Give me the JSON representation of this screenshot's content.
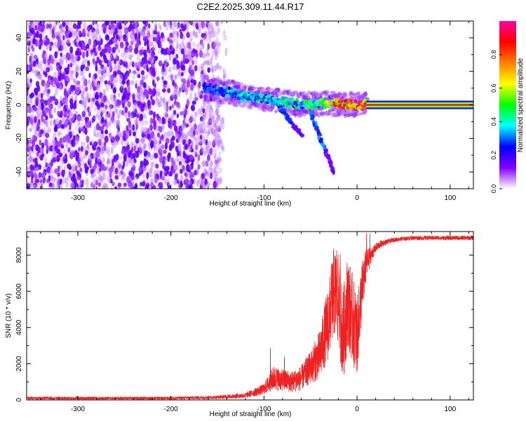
{
  "title": "C2E2.2025.309.11.44.R17",
  "chart_data": [
    {
      "type": "heatmap",
      "title": "C2E2.2025.309.11.44.R17",
      "xlabel": "Height of straight line (km)",
      "ylabel": "Frequency (Hz)",
      "xlim": [
        -355,
        125
      ],
      "ylim": [
        -50,
        50
      ],
      "xticks": [
        -300,
        -200,
        -100,
        0,
        100
      ],
      "yticks": [
        -40,
        -20,
        0,
        20,
        40
      ],
      "colorbar": {
        "label": "Normalized spectral amplitude",
        "range": [
          0,
          1
        ],
        "ticks": [
          0.0,
          0.2,
          0.4,
          0.6,
          0.8
        ],
        "tick_labels": [
          "0.0",
          "0.2",
          "0.4",
          "0.6",
          "0.8"
        ],
        "colormap": [
          "#ffffff",
          "#8000ff",
          "#0000ff",
          "#00ffff",
          "#00ff00",
          "#ffff00",
          "#ff8000",
          "#ff0000",
          "#ff00a0"
        ]
      },
      "noise_region": {
        "x_range": [
          -355,
          -150
        ],
        "freq_range": [
          -50,
          50
        ],
        "typical_amplitude": 0.15
      },
      "signal_track": [
        {
          "x": -165,
          "freq": 10,
          "amplitude": 0.25
        },
        {
          "x": -140,
          "freq": 8,
          "amplitude": 0.3
        },
        {
          "x": -120,
          "freq": 5,
          "amplitude": 0.35
        },
        {
          "x": -100,
          "freq": 4,
          "amplitude": 0.35
        },
        {
          "x": -80,
          "freq": 2,
          "amplitude": 0.4
        },
        {
          "x": -60,
          "freq": 0,
          "amplitude": 0.4
        },
        {
          "x": -40,
          "freq": 1,
          "amplitude": 0.45
        },
        {
          "x": -20,
          "freq": 0.5,
          "amplitude": 0.75
        },
        {
          "x": 0,
          "freq": 0,
          "amplitude": 0.8
        },
        {
          "x": 10,
          "freq": 0,
          "amplitude": 0.9
        },
        {
          "x": 125,
          "freq": 0,
          "amplitude": 0.9
        }
      ],
      "side_branches": [
        {
          "x": [
            -85,
            -60
          ],
          "freq": [
            0,
            -18
          ]
        },
        {
          "x": [
            -50,
            -25
          ],
          "freq": [
            -5,
            -40
          ]
        }
      ]
    },
    {
      "type": "line",
      "xlabel": "Height of straight line (km)",
      "ylabel": "SNR (10 * v/v)",
      "xlim": [
        -355,
        125
      ],
      "ylim": [
        0,
        9300
      ],
      "xticks": [
        -300,
        -200,
        -100,
        0,
        100
      ],
      "yticks": [
        0,
        2000,
        4000,
        6000,
        8000
      ],
      "color": "#ee2222",
      "series": [
        {
          "x": [
            -355,
            -300,
            -250,
            -200,
            -150,
            -120,
            -100,
            -90,
            -80,
            -70,
            -60,
            -50,
            -40,
            -30,
            -25,
            -20,
            -15,
            -10,
            -5,
            0,
            5,
            10,
            15,
            20,
            25,
            30,
            40,
            50,
            60,
            80,
            100,
            125
          ],
          "y": [
            100,
            100,
            100,
            100,
            150,
            250,
            600,
            1200,
            1100,
            1000,
            1200,
            1800,
            2500,
            4500,
            6000,
            5500,
            3500,
            5500,
            4500,
            3500,
            6000,
            7500,
            8000,
            8400,
            8600,
            8700,
            8850,
            8900,
            8950,
            8950,
            8950,
            8950
          ],
          "noise_amp": [
            80,
            80,
            80,
            80,
            100,
            150,
            300,
            700,
            600,
            600,
            700,
            900,
            1400,
            2200,
            2500,
            2500,
            2600,
            2600,
            2500,
            2200,
            1600,
            900,
            400,
            250,
            200,
            150,
            120,
            120,
            120,
            120,
            120,
            120
          ],
          "spikes": [
            {
              "x": -93,
              "y": 3100
            },
            {
              "x": -78,
              "y": 2500
            },
            {
              "x": -28,
              "y": 8100
            },
            {
              "x": -22,
              "y": 8400
            },
            {
              "x": -18,
              "y": 8200
            },
            {
              "x": 10,
              "y": 9250
            },
            {
              "x": 14,
              "y": 9300
            }
          ]
        }
      ]
    }
  ]
}
